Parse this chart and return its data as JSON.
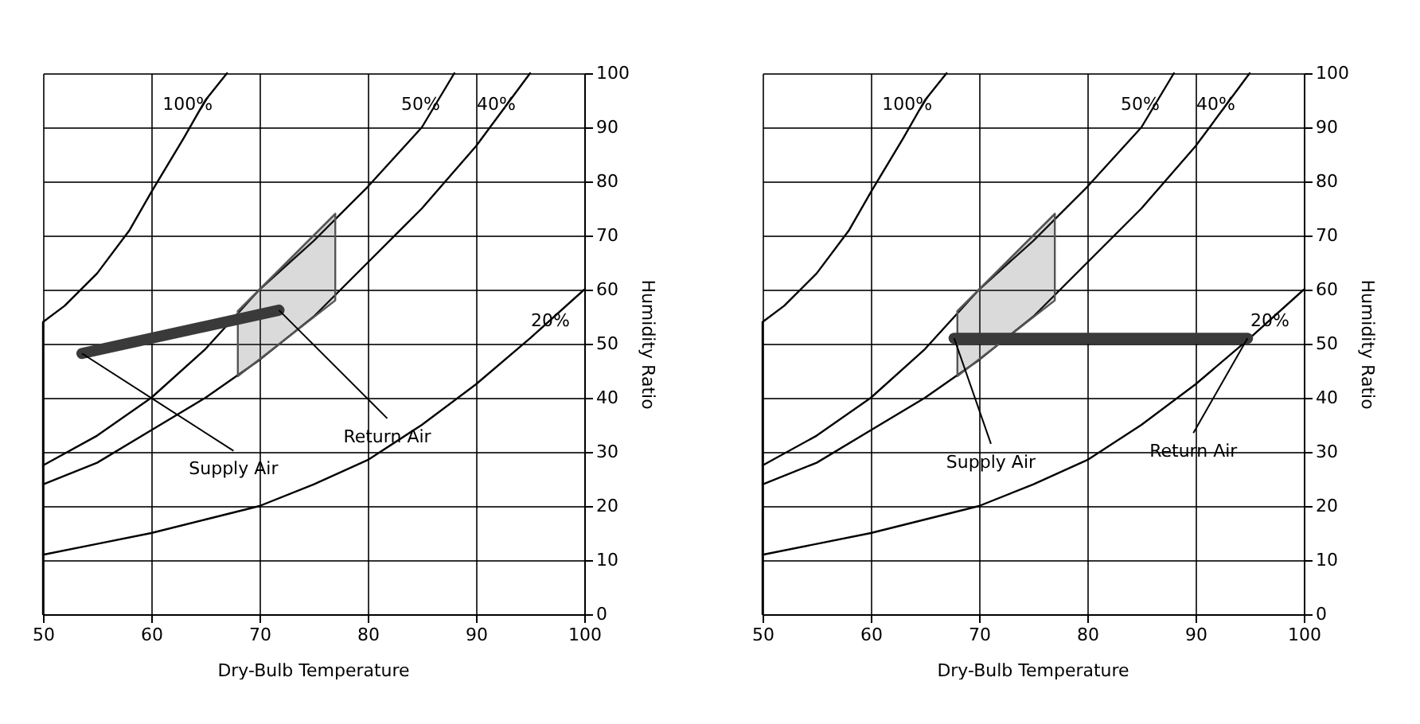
{
  "chart_data": [
    {
      "type": "line",
      "xlabel": "Dry-Bulb Temperature",
      "ylabel": "Humidity Ratio",
      "xlim": [
        50,
        100
      ],
      "ylim": [
        0,
        100
      ],
      "xticks": [
        50,
        60,
        70,
        80,
        90,
        100
      ],
      "yticks": [
        0,
        10,
        20,
        30,
        40,
        50,
        60,
        70,
        80,
        90,
        100
      ],
      "grid": true,
      "marker": "none",
      "line_style": "solid",
      "series": [
        {
          "name": "100%",
          "color": "#000000",
          "x": [
            50,
            50,
            52,
            55,
            58,
            60,
            63,
            65,
            67
          ],
          "values": [
            0,
            54,
            57,
            63,
            71,
            78,
            88,
            95,
            100
          ]
        },
        {
          "name": "50%",
          "color": "#000000",
          "x": [
            50,
            55,
            60,
            65,
            70,
            75,
            80,
            85,
            88
          ],
          "values": [
            27.5,
            33,
            40,
            49,
            60,
            69,
            79,
            90,
            100
          ]
        },
        {
          "name": "40%",
          "color": "#000000",
          "x": [
            50,
            55,
            60,
            65,
            70,
            75,
            80,
            85,
            90,
            95
          ],
          "values": [
            24,
            28,
            34,
            40,
            47,
            55,
            65,
            75,
            86.5,
            100
          ]
        },
        {
          "name": "20%",
          "color": "#000000",
          "x": [
            50,
            55,
            60,
            65,
            70,
            75,
            80,
            85,
            90,
            95,
            100
          ],
          "values": [
            11,
            13,
            15,
            17.5,
            20,
            24,
            28.5,
            35,
            42.5,
            51,
            60
          ]
        },
        {
          "color": "#555555",
          "x": [
            68,
            77
          ],
          "values": [
            56,
            74
          ],
          "lower": [
            44,
            58
          ],
          "upper": [
            56,
            74
          ]
        },
        {
          "color": "#3a3a3a",
          "x": [
            53.6,
            71.8
          ],
          "values": [
            48.2,
            56.2
          ]
        }
      ],
      "annotations": [
        {
          "text": "Supply Air",
          "x": 53.6,
          "y": 48.2
        },
        {
          "text": "Return Air",
          "x": 71.8,
          "y": 56.2
        }
      ]
    },
    {
      "type": "line",
      "xlabel": "Dry-Bulb Temperature",
      "ylabel": "Humidity Ratio",
      "xlim": [
        50,
        100
      ],
      "ylim": [
        0,
        100
      ],
      "xticks": [
        50,
        60,
        70,
        80,
        90,
        100
      ],
      "yticks": [
        0,
        10,
        20,
        30,
        40,
        50,
        60,
        70,
        80,
        90,
        100
      ],
      "grid": true,
      "marker": "none",
      "line_style": "solid",
      "series": [
        {
          "name": "100%",
          "color": "#000000",
          "x": [
            50,
            50,
            52,
            55,
            58,
            60,
            63,
            65,
            67
          ],
          "values": [
            0,
            54,
            57,
            63,
            71,
            78,
            88,
            95,
            100
          ]
        },
        {
          "name": "50%",
          "color": "#000000",
          "x": [
            50,
            55,
            60,
            65,
            70,
            75,
            80,
            85,
            88
          ],
          "values": [
            27.5,
            33,
            40,
            49,
            60,
            69,
            79,
            90,
            100
          ]
        },
        {
          "name": "40%",
          "color": "#000000",
          "x": [
            50,
            55,
            60,
            65,
            70,
            75,
            80,
            85,
            90,
            95
          ],
          "values": [
            24,
            28,
            34,
            40,
            47,
            55,
            65,
            75,
            86.5,
            100
          ]
        },
        {
          "name": "20%",
          "color": "#000000",
          "x": [
            50,
            55,
            60,
            65,
            70,
            75,
            80,
            85,
            90,
            95,
            100
          ],
          "values": [
            11,
            13,
            15,
            17.5,
            20,
            24,
            28.5,
            35,
            42.5,
            51,
            60
          ]
        },
        {
          "color": "#555555",
          "x": [
            68,
            77
          ],
          "values": [
            56,
            74
          ],
          "lower": [
            44,
            58
          ],
          "upper": [
            56,
            74
          ]
        },
        {
          "color": "#3a3a3a",
          "x": [
            67.7,
            94.8
          ],
          "values": [
            51,
            51
          ]
        }
      ],
      "annotations": [
        {
          "text": "Supply Air",
          "x": 67.7,
          "y": 51
        },
        {
          "text": "Return Air",
          "x": 94.8,
          "y": 51
        }
      ]
    }
  ]
}
